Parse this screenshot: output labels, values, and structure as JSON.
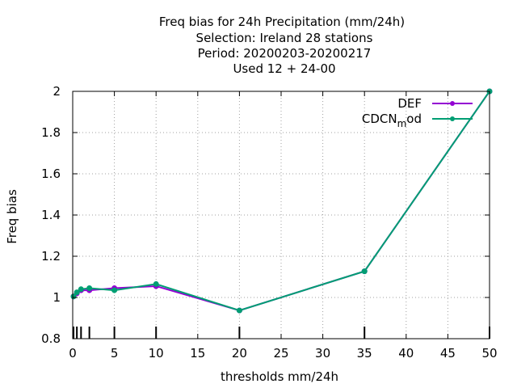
{
  "chart_data": {
    "type": "line",
    "title": [
      "Freq bias  for 24h Precipitation (mm/24h)",
      "Selection: Ireland     28 stations",
      "Period: 20200203-20200217",
      "Used  12 + 24-00"
    ],
    "xlabel": "thresholds mm/24h",
    "ylabel": "Freq bias",
    "xlim": [
      0,
      50
    ],
    "ylim": [
      0.8,
      2.0
    ],
    "xticks": [
      0,
      5,
      10,
      15,
      20,
      25,
      30,
      35,
      40,
      45,
      50
    ],
    "yticks": [
      0.8,
      1.0,
      1.2,
      1.4,
      1.6,
      1.8,
      2.0
    ],
    "ytick_labels": [
      "0.8",
      "1",
      "1.2",
      "1.4",
      "1.6",
      "1.8",
      "2"
    ],
    "grid": true,
    "legend_position": "top-right",
    "threshold_marks": [
      0.1,
      0.5,
      1,
      2,
      5,
      10,
      20,
      35,
      50
    ],
    "series": [
      {
        "name": "DEF",
        "color": "#9400d3",
        "x": [
          0.1,
          0.5,
          1,
          2,
          5,
          10,
          20,
          35,
          50
        ],
        "y": [
          1.005,
          1.02,
          1.035,
          1.035,
          1.045,
          1.055,
          0.937,
          1.127,
          2.0
        ]
      },
      {
        "name": "CDCN_mod",
        "legend_main": "CDCN",
        "legend_sub": "m",
        "legend_tail": "od",
        "color": "#009e73",
        "x": [
          0.1,
          0.5,
          1,
          2,
          5,
          10,
          20,
          35,
          50
        ],
        "y": [
          1.005,
          1.025,
          1.04,
          1.045,
          1.035,
          1.065,
          0.937,
          1.127,
          2.0
        ]
      }
    ]
  }
}
